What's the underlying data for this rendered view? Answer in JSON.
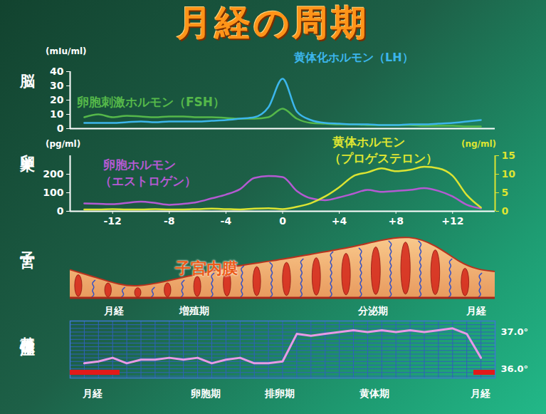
{
  "title": "月経の周期",
  "chart_data": [
    {
      "type": "line",
      "title": "脳",
      "y_label": "(mIu/ml)",
      "x": [
        -14,
        -13,
        -12,
        -11,
        -10,
        -9,
        -8,
        -7,
        -6,
        -5,
        -4,
        -3,
        -2,
        -1,
        0,
        1,
        2,
        3,
        4,
        5,
        6,
        7,
        8,
        9,
        10,
        11,
        12,
        13,
        14
      ],
      "xlim": [
        -15,
        15
      ],
      "ylim": [
        0,
        40
      ],
      "yticks": [
        0,
        10,
        20,
        30,
        40
      ],
      "tick_labels": "y",
      "series": [
        {
          "name": "黄体化ホルモン（LH）",
          "color": "#3cb6ec",
          "values": [
            4,
            4,
            4,
            4.5,
            5,
            4.5,
            5,
            5,
            5,
            5.5,
            6,
            7,
            8,
            15,
            35,
            12,
            6,
            4,
            3.5,
            3,
            3,
            2.5,
            2.5,
            3,
            3,
            3.5,
            4,
            5,
            6
          ]
        },
        {
          "name": "卵胞刺激ホルモン（FSH）",
          "color": "#55b84a",
          "values": [
            8,
            10,
            8,
            9,
            8.5,
            8,
            8.5,
            8.5,
            8,
            8,
            7.5,
            7,
            7,
            8,
            14,
            7,
            4,
            3.5,
            3,
            3,
            2.5,
            2.5,
            2.5,
            2.5,
            2,
            2,
            2,
            1.5,
            1.5
          ]
        }
      ]
    },
    {
      "type": "line",
      "title": "卵巣",
      "y_label": "(pg/ml)",
      "y2_label": "(ng/ml)",
      "x": [
        -14,
        -13,
        -12,
        -11,
        -10,
        -9,
        -8,
        -7,
        -6,
        -5,
        -4,
        -3,
        -2,
        -1,
        0,
        1,
        2,
        3,
        4,
        5,
        6,
        7,
        8,
        9,
        10,
        11,
        12,
        13,
        14
      ],
      "xlim": [
        -15,
        15
      ],
      "xticks": [
        -12,
        -8,
        -4,
        0,
        {
          "value": 4,
          "label": "+4"
        },
        {
          "value": 8,
          "label": "+8"
        },
        {
          "value": 12,
          "label": "+12"
        }
      ],
      "ylim": [
        0,
        300
      ],
      "yticks": [
        0,
        100,
        200
      ],
      "y2lim": [
        0,
        15
      ],
      "y2ticks": [
        0,
        5,
        10,
        15
      ],
      "series": [
        {
          "name": "卵胞ホルモン（エストロゲン）",
          "color": "#b45ad2",
          "values": [
            42,
            40,
            38,
            45,
            52,
            45,
            35,
            40,
            50,
            70,
            90,
            120,
            180,
            190,
            185,
            110,
            70,
            60,
            75,
            95,
            115,
            105,
            110,
            115,
            125,
            110,
            80,
            35,
            15
          ]
        },
        {
          "name": "黄体ホルモン（プロゲステロン）",
          "color": "#dce432",
          "axis": "y2",
          "values": [
            0.5,
            0.5,
            0.6,
            0.5,
            0.5,
            0.6,
            0.5,
            0.5,
            0.6,
            0.7,
            0.6,
            0.5,
            0.7,
            0.8,
            0.6,
            1.2,
            2.2,
            4,
            6.5,
            9.5,
            10.5,
            11.6,
            10.8,
            11.2,
            12,
            11.6,
            9.6,
            4.4,
            1
          ]
        }
      ]
    },
    {
      "type": "line",
      "title": "基礎体温",
      "color": "#e89ae6",
      "x": [
        -14,
        -13,
        -12,
        -11,
        -10,
        -9,
        -8,
        -7,
        -6,
        -5,
        -4,
        -3,
        -2,
        -1,
        0,
        1,
        2,
        3,
        4,
        5,
        6,
        7,
        8,
        9,
        10,
        11,
        12,
        13,
        14
      ],
      "values": [
        36.15,
        36.2,
        36.3,
        36.15,
        36.25,
        36.25,
        36.3,
        36.25,
        36.3,
        36.15,
        36.25,
        36.3,
        36.15,
        36.15,
        36.2,
        36.95,
        36.9,
        36.95,
        37.0,
        37.05,
        37.0,
        37.05,
        37.0,
        37.05,
        37.0,
        37.05,
        37.1,
        36.95,
        36.3
      ],
      "xlim": [
        -15,
        15
      ],
      "ylim": [
        35.75,
        37.3
      ],
      "yticks": [
        {
          "value": 36,
          "label": "36.0°"
        },
        {
          "value": 37,
          "label": "37.0°"
        }
      ],
      "grid": true,
      "tick_labels": "y",
      "menstruation": {
        "color": "#e21a1a",
        "ranges": [
          [
            -15,
            -11.5
          ],
          [
            13.5,
            15
          ]
        ]
      },
      "annotations": [
        {
          "text": "月経",
          "x": -13.4
        },
        {
          "text": "卵胞期",
          "x": -5.4
        },
        {
          "text": "排卵期",
          "x": -0.2
        },
        {
          "text": "黄体期",
          "x": 6.5
        },
        {
          "text": "月経",
          "x": 14.0
        }
      ]
    }
  ],
  "diagram": {
    "title": "子宮",
    "label": "子宮内膜",
    "phases": [
      {
        "text": "月経",
        "x": -11.9
      },
      {
        "text": "増殖期",
        "x": -6.2
      },
      {
        "text": "分泌期",
        "x": 6.4
      },
      {
        "text": "月経",
        "x": 13.7
      }
    ]
  }
}
